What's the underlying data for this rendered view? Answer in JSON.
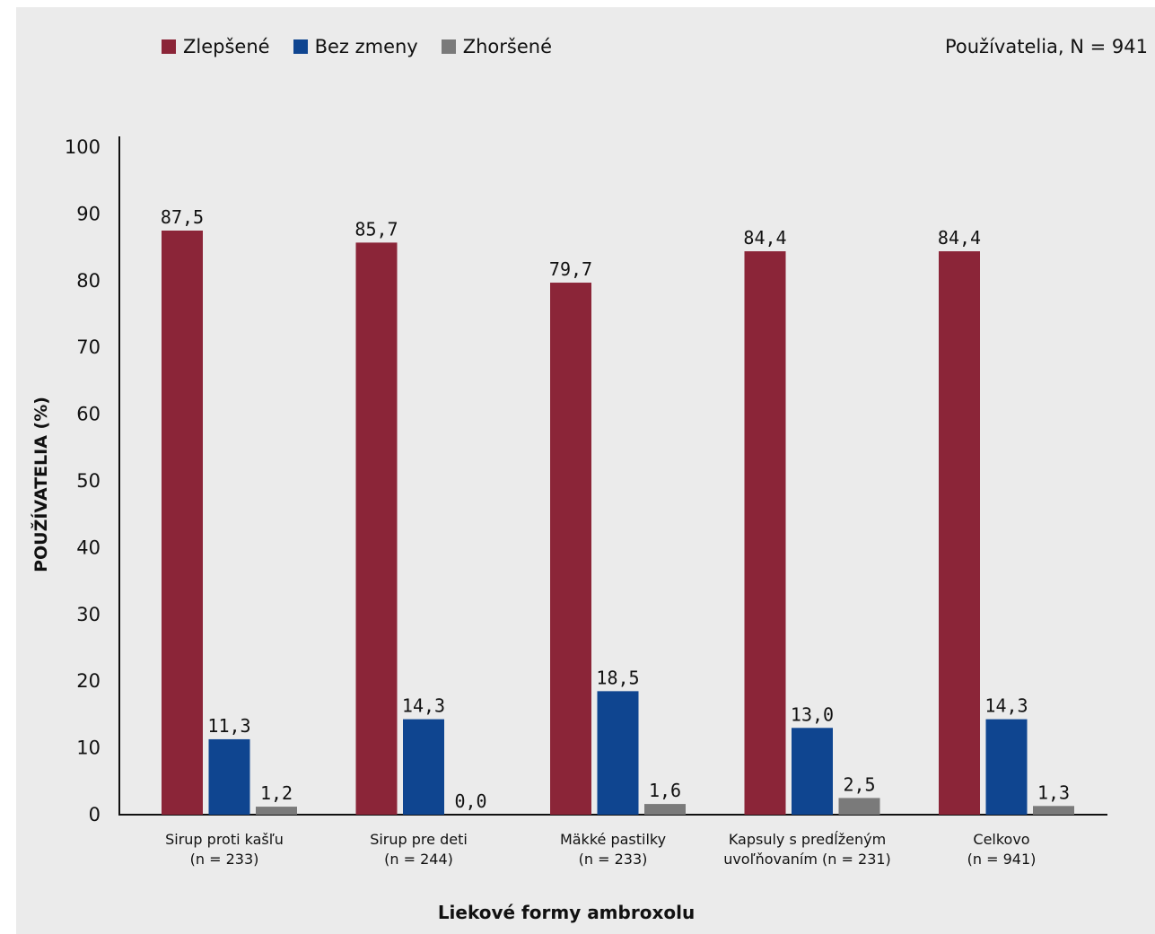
{
  "header": {
    "users_note": "Používatelia, N = 941"
  },
  "chart_data": {
    "type": "bar",
    "xlabel": "Liekové formy ambroxolu",
    "ylabel": "POUŽÍVATELIA (%)",
    "ylim": [
      0,
      100
    ],
    "yticks": [
      0,
      10,
      20,
      30,
      40,
      50,
      60,
      70,
      80,
      90,
      100
    ],
    "grid": false,
    "legend_placement": "top-left",
    "categories": [
      [
        "Sirup proti kašľu",
        "(n = 233)"
      ],
      [
        "Sirup pre deti",
        "(n = 244)"
      ],
      [
        "Mäkké pastilky",
        "(n = 233)"
      ],
      [
        "Kapsuly s predĺženým",
        "uvoľňovaním (n = 231)"
      ],
      [
        "Celkovo",
        "(n = 941)"
      ]
    ],
    "series": [
      {
        "name": "Zlepšené",
        "color": "#8b2538",
        "values": [
          87.5,
          85.7,
          79.7,
          84.4,
          84.4
        ],
        "labels": [
          "87,5",
          "85,7",
          "79,7",
          "84,4",
          "84,4"
        ]
      },
      {
        "name": "Bez zmeny",
        "color": "#0f4590",
        "values": [
          11.3,
          14.3,
          18.5,
          13.0,
          14.3
        ],
        "labels": [
          "11,3",
          "14,3",
          "18,5",
          "13,0",
          "14,3"
        ]
      },
      {
        "name": "Zhoršené",
        "color": "#7a7a7a",
        "values": [
          1.2,
          0.0,
          1.6,
          2.5,
          1.3
        ],
        "labels": [
          "1,2",
          "0,0",
          "1,6",
          "2,5",
          "1,3"
        ]
      }
    ]
  }
}
